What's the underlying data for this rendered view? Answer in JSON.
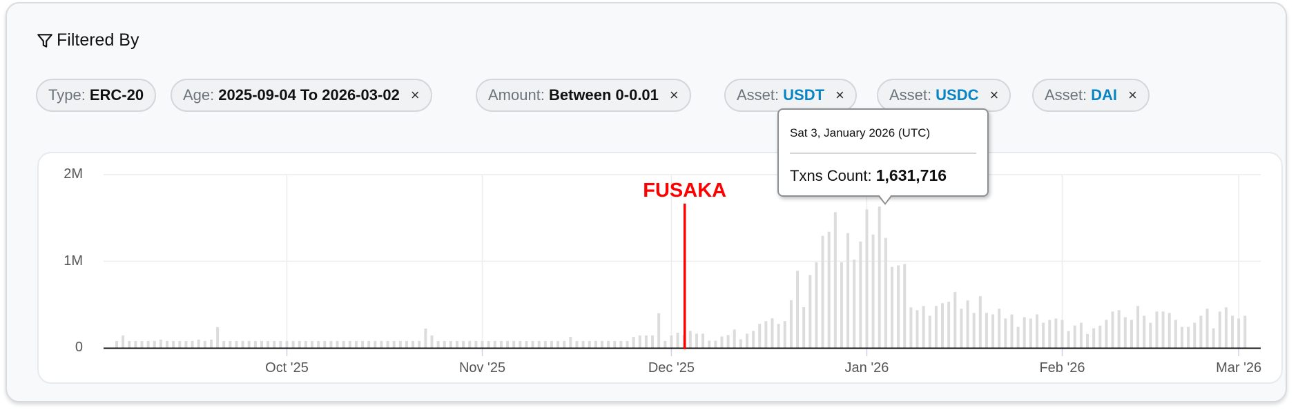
{
  "header": {
    "title": "Filtered By",
    "icon": "filter-icon"
  },
  "filters": [
    {
      "key": "Type:",
      "value": "ERC-20",
      "removable": false,
      "value_color": "#111111"
    },
    {
      "key": "Age:",
      "value": "2025-09-04 To 2026-03-02",
      "removable": true,
      "value_color": "#111111"
    },
    {
      "key": "Amount:",
      "value": "Between 0-0.01",
      "removable": true,
      "value_color": "#111111"
    },
    {
      "key": "Asset:",
      "value": "USDT",
      "removable": true,
      "value_color": "#0784c3"
    },
    {
      "key": "Asset:",
      "value": "USDC",
      "removable": true,
      "value_color": "#0784c3"
    },
    {
      "key": "Asset:",
      "value": "DAI",
      "removable": true,
      "value_color": "#0784c3"
    }
  ],
  "remove_glyph": "×",
  "chart_data": {
    "type": "bar",
    "title": "",
    "xlabel": "",
    "ylabel": "",
    "xlim": [
      "2025-09-04",
      "2026-03-02"
    ],
    "ylim": [
      0,
      2000000
    ],
    "y_ticks": [
      {
        "value": 0,
        "label": "0"
      },
      {
        "value": 1000000,
        "label": "1M"
      },
      {
        "value": 2000000,
        "label": "2M"
      }
    ],
    "x_ticks": [
      {
        "date": "2025-10-01",
        "label": "Oct '25"
      },
      {
        "date": "2025-11-01",
        "label": "Nov '25"
      },
      {
        "date": "2025-12-01",
        "label": "Dec '25"
      },
      {
        "date": "2026-01-01",
        "label": "Jan '26"
      },
      {
        "date": "2026-02-01",
        "label": "Feb '26"
      },
      {
        "date": "2026-03-01",
        "label": "Mar '26"
      }
    ],
    "grid": true,
    "bar_color": "#dcdcdc",
    "series": [
      {
        "values": [
          80000,
          143000,
          80000,
          80000,
          80000,
          80000,
          80000,
          96000,
          80000,
          80000,
          80000,
          80000,
          80000,
          96000,
          80000,
          96000,
          240000,
          80000,
          80000,
          80000,
          80000,
          80000,
          80000,
          80000,
          80000,
          80000,
          80000,
          80000,
          80000,
          80000,
          80000,
          80000,
          80000,
          80000,
          80000,
          80000,
          80000,
          80000,
          80000,
          80000,
          80000,
          80000,
          80000,
          80000,
          80000,
          80000,
          80000,
          80000,
          80000,
          223000,
          143000,
          80000,
          80000,
          80000,
          80000,
          80000,
          80000,
          80000,
          80000,
          80000,
          80000,
          80000,
          80000,
          80000,
          80000,
          80000,
          80000,
          80000,
          80000,
          80000,
          80000,
          80000,
          128000,
          80000,
          80000,
          80000,
          80000,
          80000,
          80000,
          80000,
          80000,
          80000,
          128000,
          143000,
          143000,
          143000,
          400000,
          80000,
          143000,
          175000,
          150000,
          196000,
          164000,
          164000,
          83000,
          83000,
          132000,
          148000,
          212000,
          99000,
          164000,
          196000,
          277000,
          309000,
          341000,
          277000,
          309000,
          551000,
          890000,
          470000,
          841000,
          987000,
          1293000,
          1341000,
          1567000,
          987000,
          1325000,
          1019000,
          1228000,
          1599000,
          1309000,
          1631716,
          1270000,
          935000,
          952000,
          968000,
          468000,
          435000,
          484000,
          371000,
          484000,
          516000,
          532000,
          645000,
          452000,
          548000,
          403000,
          597000,
          403000,
          387000,
          452000,
          339000,
          387000,
          242000,
          355000,
          339000,
          387000,
          290000,
          323000,
          339000,
          323000,
          194000,
          258000,
          290000,
          161000,
          226000,
          258000,
          323000,
          419000,
          435000,
          355000,
          323000,
          484000,
          371000,
          290000,
          419000,
          419000,
          403000,
          323000,
          242000,
          242000,
          290000,
          371000,
          452000,
          226000,
          419000,
          468000,
          371000,
          339000,
          371000
        ]
      }
    ],
    "annotation": {
      "label": "FUSAKA",
      "date": "2025-12-03",
      "color": "#ff0000"
    },
    "tooltip": {
      "date": "Sat 3, January 2026 (UTC)",
      "label": "Txns Count:",
      "value": "1,631,716",
      "hovered_date": "2026-01-03"
    }
  }
}
